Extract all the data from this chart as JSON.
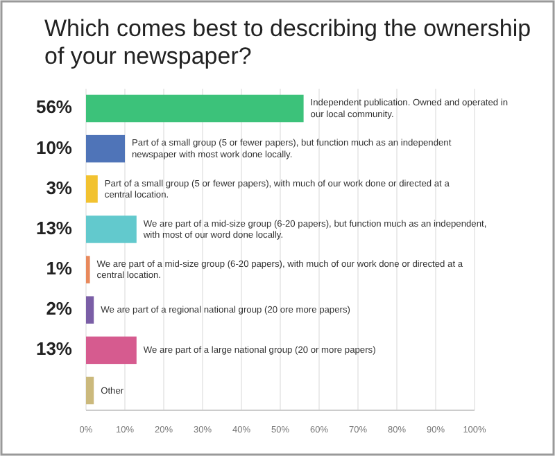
{
  "chart_data": {
    "type": "bar",
    "orientation": "horizontal",
    "title": "Which comes best to describing the ownership of your newspaper?",
    "categories": [
      "Independent publication. Owned and operated in our local community.",
      "Part of a small group (5 or fewer papers), but function much as an independent newspaper with most work done locally.",
      "Part of a small group (5 or fewer papers), with much of our work done or directed at a central location.",
      "We are part of a mid-size group (6-20 papers), but function much as an independent, with most of our word done locally.",
      "We are part of a mid-size group (6-20 papers), with much of our work done or directed at a central location.",
      "We are part of a regional national group (20 ore more papers)",
      "We are part of a large national group (20 or more papers)",
      "Other"
    ],
    "values": [
      56,
      10,
      3,
      13,
      1,
      2,
      13,
      2
    ],
    "value_labels": [
      "56%",
      "10%",
      "3%",
      "13%",
      "1%",
      "2%",
      "13%",
      null
    ],
    "colors": [
      "#3cc27a",
      "#4f74b8",
      "#f2c230",
      "#62c9cd",
      "#e8895c",
      "#7a5ea6",
      "#d65b8f",
      "#cbb97c"
    ],
    "xlim": [
      0,
      100
    ],
    "xticks": [
      {
        "value": 0,
        "label": "0%"
      },
      {
        "value": 10,
        "label": "10%"
      },
      {
        "value": 20,
        "label": "20%"
      },
      {
        "value": 30,
        "label": "30%"
      },
      {
        "value": 40,
        "label": "40%"
      },
      {
        "value": 50,
        "label": "50%"
      },
      {
        "value": 60,
        "label": "60%"
      },
      {
        "value": 70,
        "label": "70%"
      },
      {
        "value": 80,
        "label": "80%"
      },
      {
        "value": 90,
        "label": "90%"
      },
      {
        "value": 100,
        "label": "100%"
      }
    ],
    "grid": "x"
  }
}
